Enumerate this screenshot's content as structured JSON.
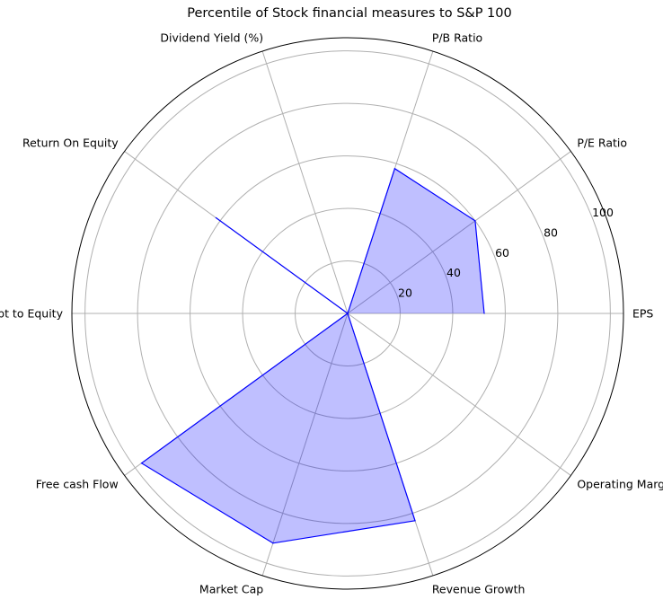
{
  "chart_data": {
    "type": "radar",
    "title": "Percentile of Stock financial measures to S&P 100",
    "categories": [
      "EPS",
      "P/E Ratio",
      "P/B Ratio",
      "Dividend Yield (%)",
      "Return On Equity",
      "Debt to Equity",
      "Free cash Flow",
      "Market Cap",
      "Revenue Growth",
      "Operating Margin"
    ],
    "series": [
      {
        "values": [
          52,
          60,
          58,
          0,
          62,
          0,
          97,
          92,
          83,
          0
        ]
      }
    ],
    "rlim": [
      0,
      105
    ],
    "rticks": [
      20,
      40,
      60,
      80,
      100
    ],
    "grid": true,
    "colors": {
      "line": "#0000ff",
      "fill": "#0000ff",
      "grid": "#b0b0b0",
      "frame": "#000000"
    }
  }
}
